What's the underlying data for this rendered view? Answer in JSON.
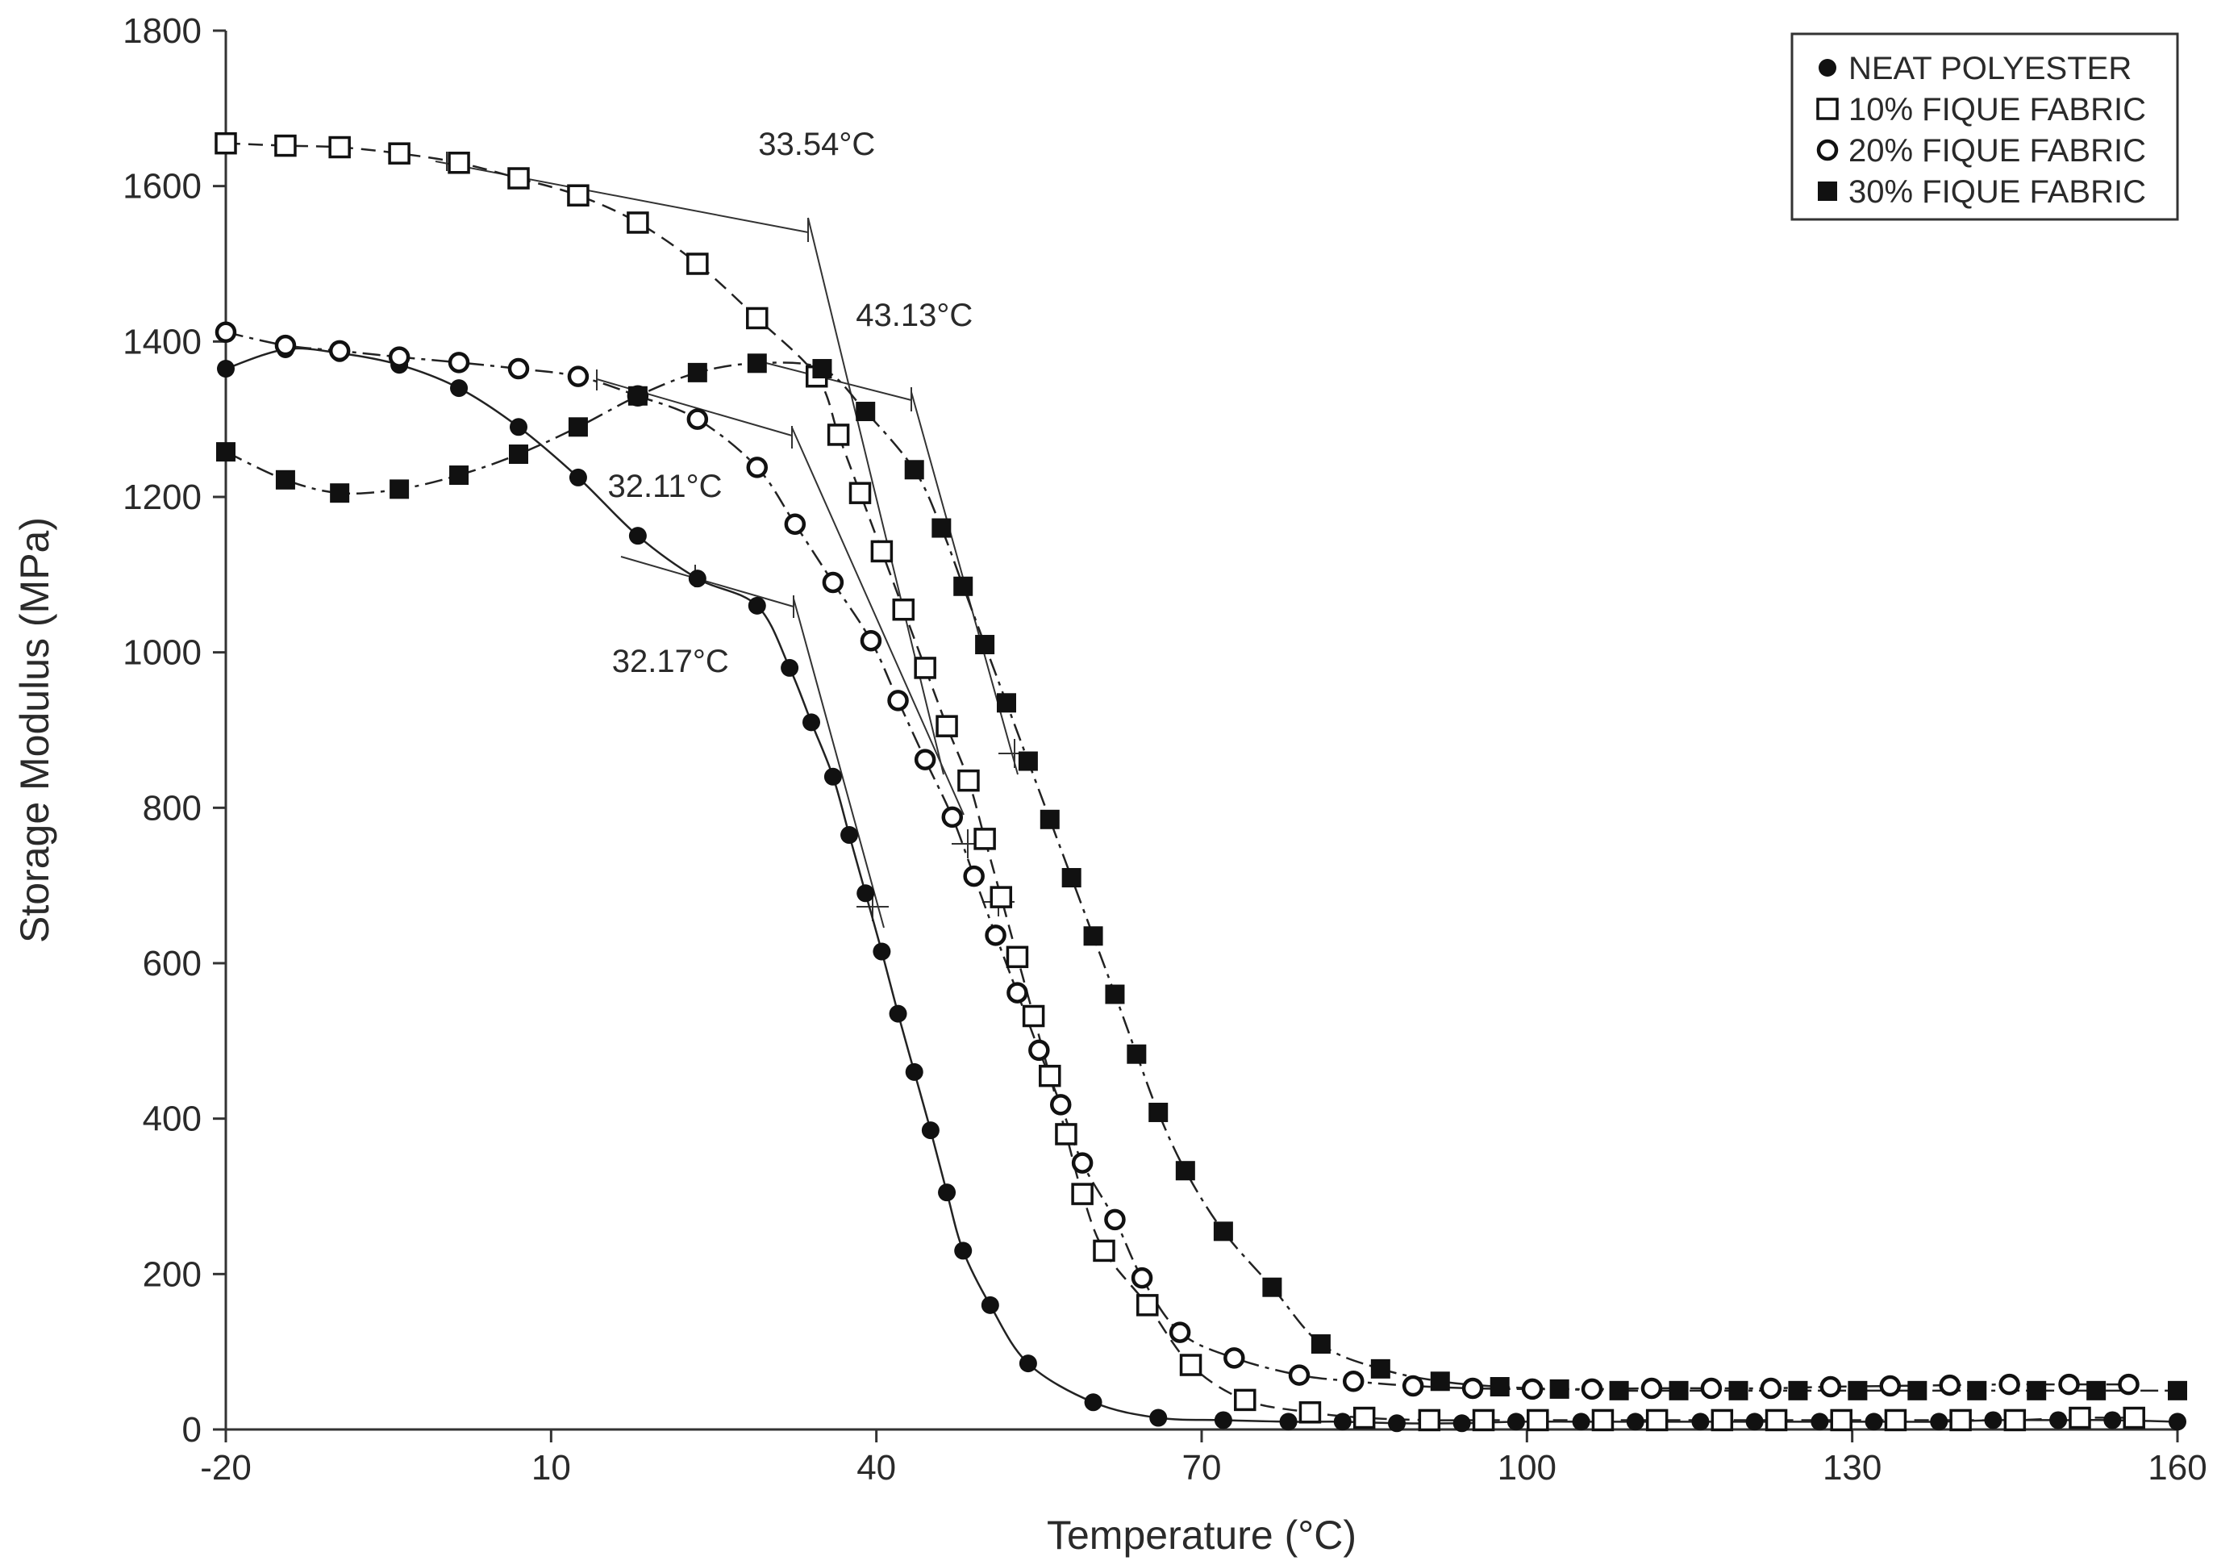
{
  "chart_data": {
    "type": "line",
    "title": "",
    "xlabel": "Temperature (°C)",
    "ylabel": "Storage Modulus (MPa)",
    "xlim": [
      -20,
      160
    ],
    "ylim": [
      0,
      1800
    ],
    "xticks": [
      -20,
      10,
      40,
      70,
      100,
      130,
      160
    ],
    "yticks": [
      0,
      200,
      400,
      600,
      800,
      1000,
      1200,
      1400,
      1600,
      1800
    ],
    "xtick_labels": [
      "-20",
      "10",
      "40",
      "70",
      "100",
      "130",
      "160"
    ],
    "ytick_labels": [
      "0",
      "200",
      "400",
      "600",
      "800",
      "1000",
      "1200",
      "1400",
      "1600",
      "1800"
    ],
    "grid": false,
    "legend_position": "top-right",
    "series": [
      {
        "name": "NEAT POLYESTER",
        "marker": "filled-circle",
        "line": "solid",
        "x": [
          -20,
          -14.5,
          -9.5,
          -4,
          1.5,
          7,
          12.5,
          18,
          23.5,
          29,
          32,
          34,
          36,
          37.5,
          39,
          40.5,
          42,
          43.5,
          45,
          46.5,
          48,
          50.5,
          54,
          60,
          66,
          72,
          78,
          83,
          88,
          94,
          99,
          105,
          110,
          116,
          121,
          127,
          132,
          138,
          143,
          149,
          154,
          160
        ],
        "y": [
          1365,
          1390,
          1385,
          1370,
          1340,
          1290,
          1225,
          1150,
          1095,
          1060,
          980,
          910,
          840,
          765,
          690,
          615,
          535,
          460,
          385,
          305,
          230,
          160,
          85,
          35,
          15,
          12,
          10,
          10,
          8,
          8,
          10,
          10,
          10,
          10,
          10,
          10,
          10,
          10,
          12,
          12,
          12,
          10
        ]
      },
      {
        "name": "10% FIQUE FABRIC",
        "marker": "open-square",
        "line": "dashed",
        "x": [
          -20,
          -14.5,
          -9.5,
          -4,
          1.5,
          7,
          12.5,
          18,
          23.5,
          29,
          34.5,
          36.5,
          38.5,
          40.5,
          42.5,
          44.5,
          46.5,
          48.5,
          50,
          51.5,
          53,
          54.5,
          56,
          57.5,
          59,
          61,
          65,
          69,
          74,
          80,
          85,
          91,
          96,
          101,
          107,
          112,
          118,
          123,
          129,
          134,
          140,
          145,
          151,
          156
        ],
        "y": [
          1655,
          1652,
          1650,
          1642,
          1630,
          1610,
          1588,
          1553,
          1500,
          1430,
          1355,
          1280,
          1205,
          1130,
          1055,
          980,
          905,
          835,
          760,
          685,
          608,
          532,
          455,
          380,
          303,
          230,
          160,
          83,
          38,
          22,
          15,
          12,
          12,
          12,
          12,
          12,
          12,
          12,
          12,
          12,
          12,
          12,
          15,
          15
        ]
      },
      {
        "name": "20% FIQUE FABRIC",
        "marker": "open-circle",
        "line": "dash-dot",
        "x": [
          -20,
          -14.5,
          -9.5,
          -4,
          1.5,
          7,
          12.5,
          18,
          23.5,
          29,
          32.5,
          36,
          39.5,
          42,
          44.5,
          47,
          49,
          51,
          53,
          55,
          57,
          59,
          62,
          64.5,
          68,
          73,
          79,
          84,
          89.5,
          95,
          100.5,
          106,
          111.5,
          117,
          122.5,
          128,
          133.5,
          139,
          144.5,
          150,
          155.5
        ],
        "y": [
          1412,
          1395,
          1388,
          1380,
          1373,
          1365,
          1355,
          1330,
          1300,
          1238,
          1165,
          1090,
          1015,
          938,
          862,
          788,
          712,
          636,
          562,
          488,
          418,
          343,
          270,
          195,
          125,
          92,
          70,
          62,
          56,
          53,
          52,
          52,
          53,
          53,
          53,
          55,
          56,
          57,
          58,
          58,
          58
        ]
      },
      {
        "name": "30% FIQUE FABRIC",
        "marker": "filled-square",
        "line": "dash-dot",
        "x": [
          -20,
          -14.5,
          -9.5,
          -4,
          1.5,
          7,
          12.5,
          18,
          23.5,
          29,
          35,
          39,
          43.5,
          46,
          48,
          50,
          52,
          54,
          56,
          58,
          60,
          62,
          64,
          66,
          68.5,
          72,
          76.5,
          81,
          86.5,
          92,
          97.5,
          103,
          108.5,
          114,
          119.5,
          125,
          130.5,
          136,
          141.5,
          147,
          152.5,
          160
        ],
        "y": [
          1258,
          1222,
          1205,
          1210,
          1228,
          1255,
          1290,
          1330,
          1360,
          1372,
          1365,
          1310,
          1235,
          1160,
          1085,
          1010,
          935,
          860,
          785,
          710,
          635,
          560,
          483,
          408,
          333,
          255,
          183,
          110,
          78,
          62,
          55,
          52,
          50,
          50,
          50,
          50,
          50,
          50,
          50,
          50,
          50,
          50
        ]
      }
    ],
    "annotations": [
      {
        "text": "33.54°C",
        "x": 34.5,
        "y": 1640
      },
      {
        "text": "43.13°C",
        "x": 43.5,
        "y": 1420
      },
      {
        "text": "32.11°C",
        "x": 20.5,
        "y": 1200
      },
      {
        "text": "32.17°C",
        "x": 21,
        "y": 975
      }
    ]
  }
}
